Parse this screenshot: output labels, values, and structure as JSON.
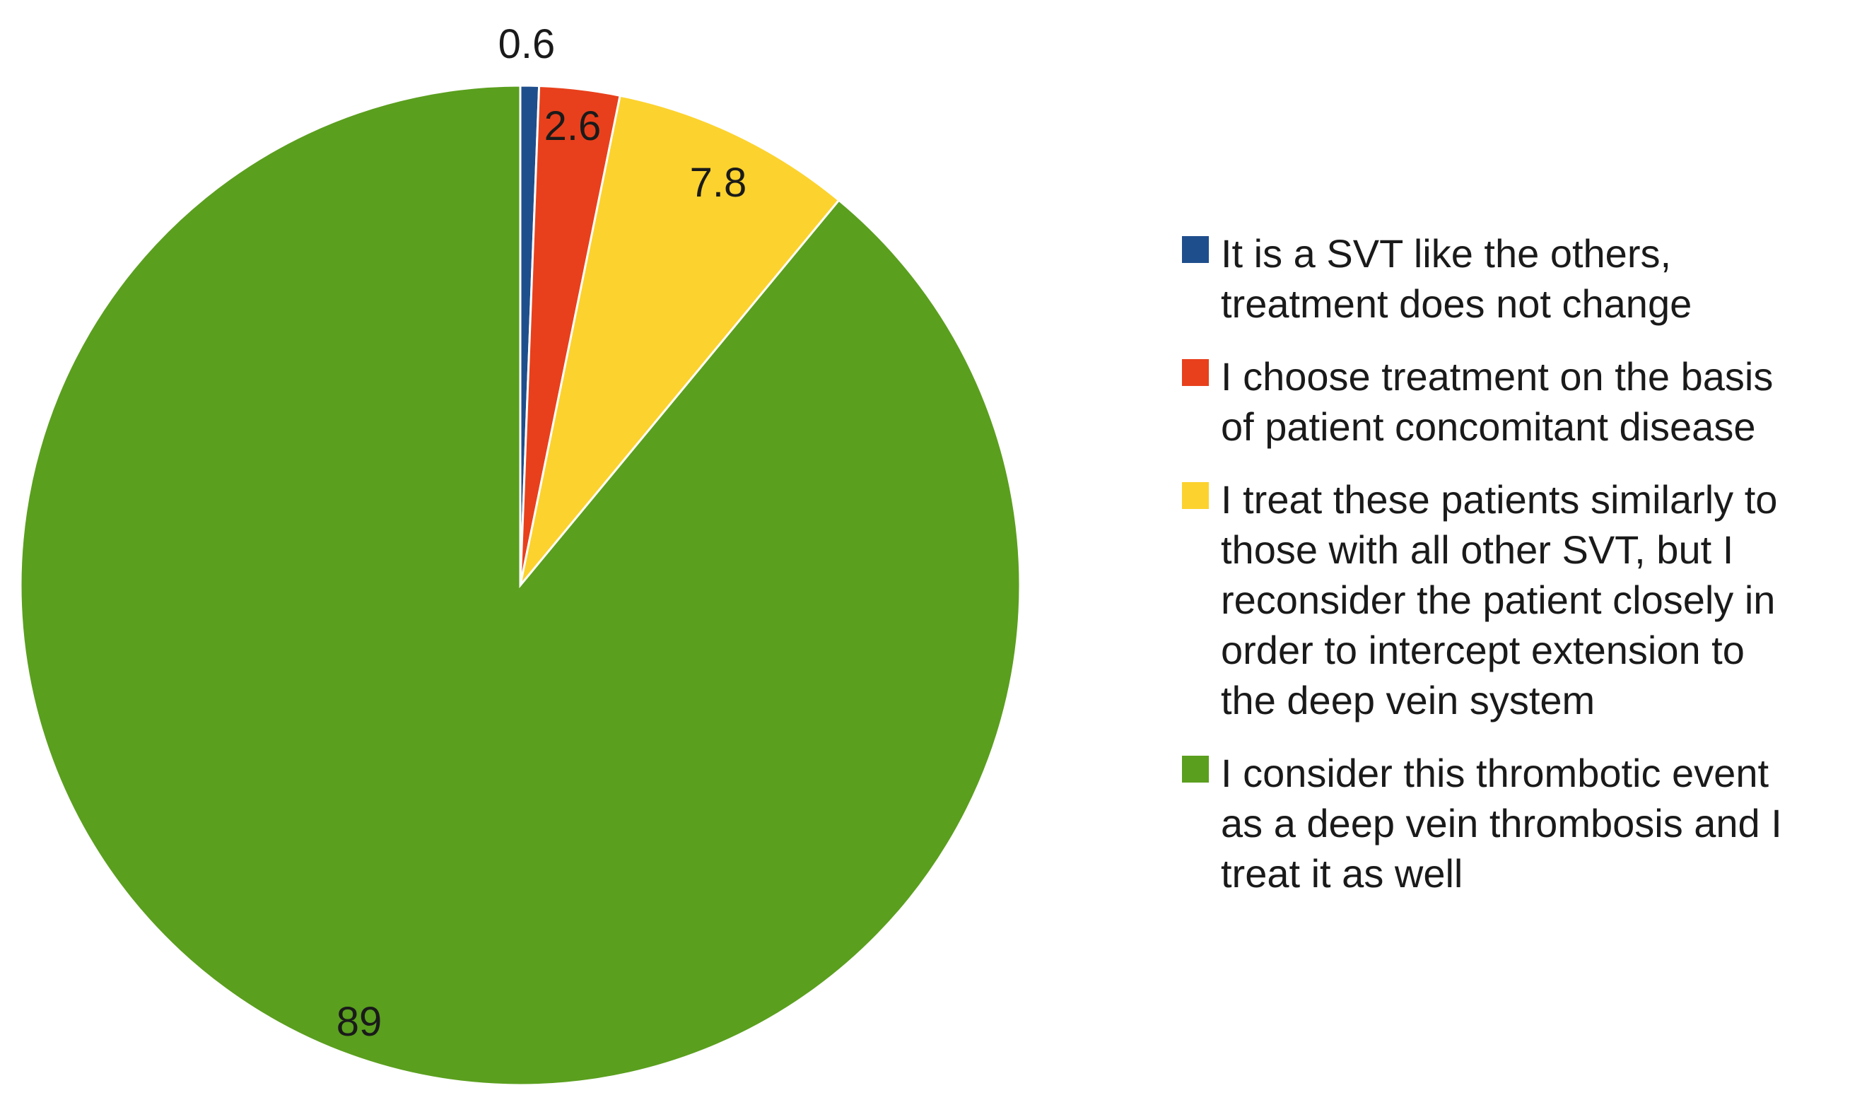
{
  "chart_data": {
    "type": "pie",
    "title": "",
    "legend_position": "right",
    "slices": [
      {
        "label": "It is a SVT like the others, treatment does not change",
        "legend_lines": [
          "It is a SVT like the others,",
          "treatment does not change"
        ],
        "value": 0.6,
        "value_label": "0.6",
        "color": "#1f4e8c"
      },
      {
        "label": "I choose treatment on the basis of patient concomitant disease",
        "legend_lines": [
          "I choose treatment on the basis",
          "of patient concomitant disease"
        ],
        "value": 2.6,
        "value_label": "2.6",
        "color": "#e8401c"
      },
      {
        "label": "I treat these patients similarly to those with all other SVT, but I reconsider the patient closely in order to intercept extension to the deep vein system",
        "legend_lines": [
          "I treat these patients similarly to",
          "those with all other SVT, but I",
          "reconsider the patient closely in",
          "order to intercept extension to",
          "the deep vein system"
        ],
        "value": 7.8,
        "value_label": "7.8",
        "color": "#fcd22e"
      },
      {
        "label": "I consider this thrombotic event as a deep vein thrombosis and I treat it as well",
        "legend_lines": [
          "I consider this thrombotic event",
          "as a deep vein thrombosis and I",
          "treat it as well"
        ],
        "value": 89,
        "value_label": "89",
        "color": "#5a9f1e"
      }
    ]
  }
}
